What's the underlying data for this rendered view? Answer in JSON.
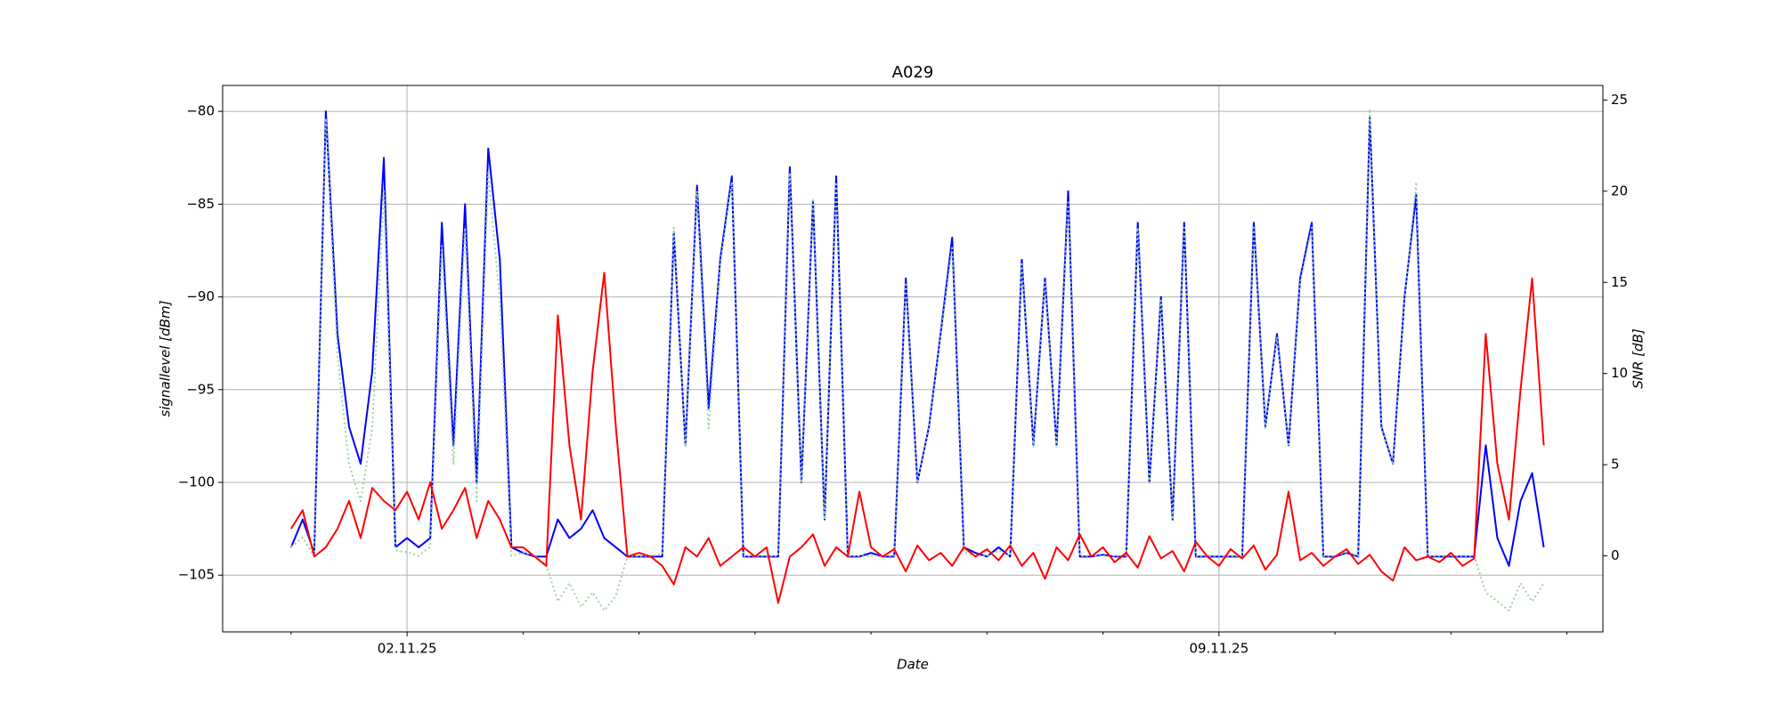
{
  "chart_data": {
    "type": "line",
    "title": "A029",
    "xlabel": "Date",
    "ylabel": "signallevel [dBm]",
    "y2label": "SNR [dB]",
    "grid": true,
    "xlim": [
      0.41,
      12.31
    ],
    "xticks": [
      {
        "value": 2,
        "label": "02.11.25"
      },
      {
        "value": 9,
        "label": "09.11.25"
      }
    ],
    "xminorticks": [
      1,
      3,
      4,
      5,
      6,
      7,
      8,
      10,
      11,
      12
    ],
    "ylim": [
      -108.06,
      -78.6
    ],
    "yticks": [
      {
        "value": -105,
        "label": "−105"
      },
      {
        "value": -100,
        "label": "−100"
      },
      {
        "value": -95,
        "label": "−95"
      },
      {
        "value": -90,
        "label": "−90"
      },
      {
        "value": -85,
        "label": "−85"
      },
      {
        "value": -80,
        "label": "−80"
      }
    ],
    "y2lim": [
      -4.17,
      25.8
    ],
    "y2ticks": [
      0,
      5,
      10,
      15,
      20,
      25
    ],
    "x": [
      1.0,
      1.1,
      1.2,
      1.3,
      1.4,
      1.5,
      1.6,
      1.7,
      1.8,
      1.9,
      2.0,
      2.1,
      2.2,
      2.3,
      2.4,
      2.5,
      2.6,
      2.7,
      2.8,
      2.9,
      3.0,
      3.1,
      3.2,
      3.3,
      3.4,
      3.5,
      3.6,
      3.7,
      3.8,
      3.9,
      4.0,
      4.1,
      4.2,
      4.3,
      4.4,
      4.5,
      4.6,
      4.7,
      4.8,
      4.9,
      5.0,
      5.1,
      5.2,
      5.3,
      5.4,
      5.5,
      5.6,
      5.7,
      5.8,
      5.9,
      6.0,
      6.1,
      6.2,
      6.3,
      6.4,
      6.5,
      6.6,
      6.7,
      6.8,
      6.9,
      7.0,
      7.1,
      7.2,
      7.3,
      7.4,
      7.5,
      7.6,
      7.7,
      7.8,
      7.9,
      8.0,
      8.1,
      8.2,
      8.3,
      8.4,
      8.5,
      8.6,
      8.7,
      8.8,
      8.9,
      9.0,
      9.1,
      9.2,
      9.3,
      9.4,
      9.5,
      9.6,
      9.7,
      9.8,
      9.9,
      10.0,
      10.1,
      10.2,
      10.3,
      10.4,
      10.5,
      10.6,
      10.7,
      10.8,
      10.9,
      11.0,
      11.1,
      11.2,
      11.3,
      11.4,
      11.5,
      11.6,
      11.7,
      11.8
    ],
    "series": [
      {
        "color": "#0000ff",
        "axis": "y",
        "style": "solid",
        "values": [
          -103.5,
          -102,
          -103.8,
          -80,
          -92,
          -97,
          -99,
          -94,
          -82.5,
          -103.5,
          -103,
          -103.5,
          -103,
          -86,
          -98,
          -85,
          -100,
          -82,
          -88,
          -103.5,
          -103.8,
          -104,
          -104,
          -102,
          -103,
          -102.5,
          -101.5,
          -103,
          -103.5,
          -104,
          -104,
          -104,
          -104,
          -86.5,
          -98,
          -84,
          -96,
          -88,
          -83.5,
          -104,
          -104,
          -104,
          -104,
          -83,
          -100,
          -84.8,
          -102,
          -83.5,
          -104,
          -104,
          -103.8,
          -104,
          -104,
          -89,
          -100,
          -97,
          -92,
          -86.8,
          -103.5,
          -103.8,
          -104,
          -103.5,
          -104,
          -88,
          -98,
          -89,
          -98,
          -84.3,
          -104,
          -104,
          -103.9,
          -104,
          -104,
          -86,
          -100,
          -90,
          -102,
          -86,
          -104,
          -104,
          -104,
          -104,
          -104,
          -86,
          -97,
          -92,
          -98,
          -89,
          -86,
          -104,
          -104,
          -103.8,
          -104,
          -80.3,
          -97,
          -99,
          -90,
          -84.5,
          -104,
          -104,
          -104,
          -104,
          -104,
          -98,
          -103,
          -104.5,
          -101,
          -99.5,
          -103.5
        ]
      },
      {
        "color": "#9fd39f",
        "axis": "y2",
        "style": "dotted",
        "values": [
          0.5,
          1,
          0,
          24,
          11,
          5,
          3,
          7,
          20,
          0.3,
          0.2,
          0,
          0.5,
          17,
          5,
          18,
          3,
          21,
          14,
          0,
          0.2,
          0,
          -0.5,
          -2.5,
          -1.5,
          -2.8,
          -2,
          -3,
          -2.2,
          0,
          0,
          0,
          0.1,
          18,
          6,
          20,
          7,
          16,
          20.5,
          0,
          0,
          0,
          0,
          21,
          4,
          19.5,
          2,
          20.5,
          0,
          0,
          0,
          0,
          0,
          15,
          4,
          7,
          12,
          17,
          0.2,
          0,
          0,
          0.3,
          0,
          16,
          6,
          15,
          6,
          19.5,
          0,
          0,
          0,
          0,
          0,
          18,
          4,
          14,
          2,
          18,
          0,
          0,
          0,
          0,
          0,
          18,
          7,
          12,
          6,
          15,
          18,
          0,
          0,
          0.2,
          0,
          24.5,
          7,
          5,
          14,
          20.5,
          0,
          0,
          0,
          0,
          0,
          -2,
          -2.5,
          -3,
          -1.5,
          -2.5,
          -1.5
        ]
      },
      {
        "color": "#ff0000",
        "axis": "y",
        "style": "solid",
        "values": [
          -102.5,
          -101.5,
          -104,
          -103.5,
          -102.5,
          -101,
          -103,
          -100.3,
          -101,
          -101.5,
          -100.5,
          -102,
          -100,
          -102.5,
          -101.5,
          -100.3,
          -103,
          -101,
          -102,
          -103.5,
          -103.5,
          -104,
          -104.5,
          -91,
          -98,
          -102,
          -94,
          -88.7,
          -97,
          -104,
          -103.8,
          -104,
          -104.5,
          -105.5,
          -103.5,
          -104,
          -103,
          -104.5,
          -104,
          -103.5,
          -104,
          -103.5,
          -106.5,
          -104,
          -103.5,
          -102.8,
          -104.5,
          -103.5,
          -104,
          -100.5,
          -103.5,
          -104,
          -103.6,
          -104.8,
          -103.4,
          -104.2,
          -103.8,
          -104.5,
          -103.5,
          -104,
          -103.6,
          -104.2,
          -103.4,
          -104.5,
          -103.8,
          -105.2,
          -103.5,
          -104.2,
          -102.8,
          -104,
          -103.5,
          -104.3,
          -103.8,
          -104.6,
          -102.9,
          -104.1,
          -103.7,
          -104.8,
          -103.2,
          -104,
          -104.5,
          -103.6,
          -104.1,
          -103.4,
          -104.7,
          -103.9,
          -100.5,
          -104.2,
          -103.8,
          -104.5,
          -104,
          -103.6,
          -104.4,
          -103.9,
          -104.8,
          -105.3,
          -103.5,
          -104.2,
          -104,
          -104.3,
          -103.8,
          -104.5,
          -104.1,
          -92,
          -99,
          -102,
          -95,
          -89,
          -98
        ]
      }
    ]
  }
}
